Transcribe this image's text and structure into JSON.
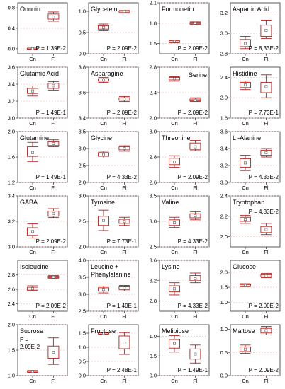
{
  "chart_data": [
    {
      "type": "box",
      "title": "Ononin",
      "p": "P = 1,39E-2",
      "categories": [
        "Cn",
        "Fl"
      ],
      "ylim": [
        -0.1,
        0.9
      ],
      "yticks": [
        0.0,
        0.4,
        0.8
      ],
      "boxes": [
        {
          "min": -0.02,
          "q1": -0.01,
          "median": 0.0,
          "q3": 0.01,
          "max": 0.01,
          "mean": 0.0
        },
        {
          "min": 0.54,
          "q1": 0.58,
          "median": 0.62,
          "q3": 0.68,
          "max": 0.72,
          "mean": 0.62
        }
      ]
    },
    {
      "type": "box",
      "title": "Glycetein",
      "p": "P = 2.09E-2",
      "categories": [
        "Cn",
        "Fl"
      ],
      "ylim": [
        0.0,
        1.2
      ],
      "yticks": [
        0.0,
        0.5,
        1.0
      ],
      "boxes": [
        {
          "min": 0.54,
          "q1": 0.58,
          "median": 0.63,
          "q3": 0.66,
          "max": 0.7,
          "mean": 0.62
        },
        {
          "min": 0.96,
          "q1": 0.98,
          "median": 1.0,
          "q3": 1.01,
          "max": 1.02,
          "mean": 1.0
        }
      ]
    },
    {
      "type": "box",
      "title": "Formonetin",
      "p": "P = 2.09E-2",
      "categories": [
        "Cn",
        "Fl"
      ],
      "ylim": [
        1.35,
        2.1
      ],
      "yticks": [
        1.5,
        1.8,
        2.1
      ],
      "boxes": [
        {
          "min": 1.51,
          "q1": 1.52,
          "median": 1.53,
          "q3": 1.54,
          "max": 1.55,
          "mean": 1.53
        },
        {
          "min": 1.78,
          "q1": 1.79,
          "median": 1.8,
          "q3": 1.81,
          "max": 1.82,
          "mean": 1.8
        }
      ]
    },
    {
      "type": "box",
      "title": "Aspartic Acid",
      "p": "P = 8,33E-2",
      "categories": [
        "Cn",
        "Fl"
      ],
      "ylim": [
        2.8,
        3.3
      ],
      "yticks": [
        2.8,
        3.0,
        3.2
      ],
      "boxes": [
        {
          "min": 2.85,
          "q1": 2.87,
          "median": 2.9,
          "q3": 2.94,
          "max": 2.97,
          "mean": 2.9
        },
        {
          "min": 2.95,
          "q1": 2.97,
          "median": 3.03,
          "q3": 3.08,
          "max": 3.13,
          "mean": 3.03
        }
      ]
    },
    {
      "type": "box",
      "title": "Glutamic Acid",
      "p": "P = 1.49E-1",
      "categories": [
        "Cn",
        "Fl"
      ],
      "ylim": [
        3.0,
        3.6
      ],
      "yticks": [
        3.0,
        3.2,
        3.4,
        3.6
      ],
      "boxes": [
        {
          "min": 3.26,
          "q1": 3.29,
          "median": 3.31,
          "q3": 3.35,
          "max": 3.38,
          "mean": 3.32
        },
        {
          "min": 3.33,
          "q1": 3.35,
          "median": 3.38,
          "q3": 3.41,
          "max": 3.43,
          "mean": 3.38
        }
      ]
    },
    {
      "type": "box",
      "title": "Asparagine",
      "p": "P = 2.09E-2",
      "categories": [
        "Cn",
        "Fl"
      ],
      "ylim": [
        3.4,
        3.8
      ],
      "yticks": [
        3.4,
        3.6,
        3.8
      ],
      "boxes": [
        {
          "min": 3.68,
          "q1": 3.69,
          "median": 3.7,
          "q3": 3.71,
          "max": 3.72,
          "mean": 3.7
        },
        {
          "min": 3.53,
          "q1": 3.54,
          "median": 3.55,
          "q3": 3.56,
          "max": 3.57,
          "mean": 3.55
        }
      ]
    },
    {
      "type": "box",
      "title": "Serine",
      "p": "P = 2.09E-2",
      "categories": [
        "Cn",
        "Fl"
      ],
      "ylim": [
        2.0,
        2.8
      ],
      "yticks": [
        2.0,
        2.4,
        2.8
      ],
      "boxes": [
        {
          "min": 2.58,
          "q1": 2.6,
          "median": 2.62,
          "q3": 2.64,
          "max": 2.65,
          "mean": 2.62
        },
        {
          "min": 2.26,
          "q1": 2.27,
          "median": 2.28,
          "q3": 2.3,
          "max": 2.32,
          "mean": 2.28
        }
      ]
    },
    {
      "type": "box",
      "title": "Histidine",
      "p": "P = 7.73E-1",
      "categories": [
        "Cn",
        "Fl"
      ],
      "ylim": [
        1.6,
        2.6
      ],
      "yticks": [
        1.6,
        2.0,
        2.4
      ],
      "boxes": [
        {
          "min": 2.16,
          "q1": 2.2,
          "median": 2.26,
          "q3": 2.3,
          "max": 2.33,
          "mean": 2.25
        },
        {
          "min": 2.0,
          "q1": 2.1,
          "median": 2.2,
          "q3": 2.3,
          "max": 2.45,
          "mean": 2.22
        }
      ]
    },
    {
      "type": "box",
      "title": "Glutamine",
      "p": "P = 1.49E-1",
      "categories": [
        "Cn",
        "Fl"
      ],
      "ylim": [
        1.2,
        2.0
      ],
      "yticks": [
        1.2,
        1.6,
        2.0
      ],
      "boxes": [
        {
          "min": 1.53,
          "q1": 1.61,
          "median": 1.68,
          "q3": 1.76,
          "max": 1.83,
          "mean": 1.67
        },
        {
          "min": 1.76,
          "q1": 1.78,
          "median": 1.81,
          "q3": 1.84,
          "max": 1.87,
          "mean": 1.81
        }
      ]
    },
    {
      "type": "box",
      "title": "Glycine",
      "p": "P = 4.33E-2",
      "categories": [
        "Cn",
        "Fl"
      ],
      "ylim": [
        2.0,
        3.5
      ],
      "yticks": [
        2.0,
        2.5,
        3.0,
        3.5
      ],
      "boxes": [
        {
          "min": 2.72,
          "q1": 2.77,
          "median": 2.82,
          "q3": 2.88,
          "max": 2.92,
          "mean": 2.82
        },
        {
          "min": 2.92,
          "q1": 2.96,
          "median": 3.0,
          "q3": 3.05,
          "max": 3.08,
          "mean": 3.0
        }
      ]
    },
    {
      "type": "box",
      "title": "Threonine",
      "p": "P = 2.09E-2",
      "categories": [
        "Cn",
        "Fl"
      ],
      "ylim": [
        2.6,
        3.0
      ],
      "yticks": [
        2.6,
        2.8,
        3.0
      ],
      "boxes": [
        {
          "min": 2.72,
          "q1": 2.74,
          "median": 2.76,
          "q3": 2.79,
          "max": 2.81,
          "mean": 2.76
        },
        {
          "min": 2.85,
          "q1": 2.86,
          "median": 2.88,
          "q3": 2.91,
          "max": 2.93,
          "mean": 2.88
        }
      ]
    },
    {
      "type": "box",
      "title": "L -Alanine",
      "p": "P = 4.33E-2",
      "categories": [
        "Cn",
        "Fl"
      ],
      "ylim": [
        3.0,
        3.6
      ],
      "yticks": [
        3.0,
        3.2,
        3.4,
        3.6
      ],
      "boxes": [
        {
          "min": 3.14,
          "q1": 3.18,
          "median": 3.22,
          "q3": 3.28,
          "max": 3.32,
          "mean": 3.23
        },
        {
          "min": 3.3,
          "q1": 3.32,
          "median": 3.35,
          "q3": 3.38,
          "max": 3.4,
          "mean": 3.35
        }
      ]
    },
    {
      "type": "box",
      "title": "GABA",
      "p": "P = 2.09E-2",
      "categories": [
        "Cn",
        "Fl"
      ],
      "ylim": [
        3.0,
        3.4
      ],
      "yticks": [
        3.0,
        3.2,
        3.4
      ],
      "boxes": [
        {
          "min": 3.07,
          "q1": 3.09,
          "median": 3.12,
          "q3": 3.15,
          "max": 3.18,
          "mean": 3.12
        },
        {
          "min": 3.23,
          "q1": 3.24,
          "median": 3.26,
          "q3": 3.28,
          "max": 3.3,
          "mean": 3.26
        }
      ]
    },
    {
      "type": "box",
      "title": "Tyrosine",
      "p": "P = 7.73E-1",
      "categories": [
        "Cn",
        "Fl"
      ],
      "ylim": [
        2.0,
        3.0
      ],
      "yticks": [
        2.0,
        2.5,
        3.0
      ],
      "boxes": [
        {
          "min": 2.32,
          "q1": 2.42,
          "median": 2.52,
          "q3": 2.6,
          "max": 2.72,
          "mean": 2.52
        },
        {
          "min": 2.42,
          "q1": 2.46,
          "median": 2.5,
          "q3": 2.54,
          "max": 2.58,
          "mean": 2.5
        }
      ]
    },
    {
      "type": "box",
      "title": "Valine",
      "p": "P = 4.33E-2",
      "categories": [
        "Cn",
        "Fl"
      ],
      "ylim": [
        2.5,
        3.5
      ],
      "yticks": [
        2.5,
        3.0,
        3.5
      ],
      "boxes": [
        {
          "min": 2.88,
          "q1": 2.92,
          "median": 2.97,
          "q3": 3.03,
          "max": 3.08,
          "mean": 2.97
        },
        {
          "min": 3.03,
          "q1": 3.07,
          "median": 3.11,
          "q3": 3.15,
          "max": 3.19,
          "mean": 3.11
        }
      ]
    },
    {
      "type": "box",
      "title": "Tryptophan",
      "p": "P = 4.33E-2",
      "categories": [
        "Cn",
        "Fl"
      ],
      "ylim": [
        1.9,
        2.4
      ],
      "yticks": [
        2.0,
        2.2,
        2.4
      ],
      "boxes": [
        {
          "min": 2.13,
          "q1": 2.15,
          "median": 2.17,
          "q3": 2.19,
          "max": 2.21,
          "mean": 2.17
        },
        {
          "min": 2.02,
          "q1": 2.04,
          "median": 2.07,
          "q3": 2.1,
          "max": 2.13,
          "mean": 2.07
        }
      ]
    },
    {
      "type": "box",
      "title": "Isoleucine",
      "p": "P = 2.09E-2",
      "categories": [
        "Cn",
        "Fl"
      ],
      "ylim": [
        2.3,
        3.0
      ],
      "yticks": [
        2.4,
        2.6,
        2.8
      ],
      "boxes": [
        {
          "min": 2.58,
          "q1": 2.59,
          "median": 2.61,
          "q3": 2.63,
          "max": 2.65,
          "mean": 2.61
        },
        {
          "min": 2.75,
          "q1": 2.76,
          "median": 2.77,
          "q3": 2.78,
          "max": 2.79,
          "mean": 2.77
        }
      ]
    },
    {
      "type": "box",
      "title": "Leucine + Phenylalanine",
      "p": "P = 1.49E-1",
      "categories": [
        "Cn",
        "Fl"
      ],
      "ylim": [
        2.5,
        4.0
      ],
      "yticks": [
        2.5,
        3.0,
        3.5,
        4.0
      ],
      "boxes": [
        {
          "min": 3.04,
          "q1": 3.09,
          "median": 3.14,
          "q3": 3.19,
          "max": 3.24,
          "mean": 3.14
        },
        {
          "min": 3.1,
          "q1": 3.14,
          "median": 3.18,
          "q3": 3.22,
          "max": 3.26,
          "mean": 3.18
        }
      ]
    },
    {
      "type": "box",
      "title": "Lysine",
      "p": "P = 4.33E-2",
      "categories": [
        "Cn",
        "Fl"
      ],
      "ylim": [
        2.6,
        3.6
      ],
      "yticks": [
        2.8,
        3.2,
        3.6
      ],
      "boxes": [
        {
          "min": 2.92,
          "q1": 2.98,
          "median": 3.04,
          "q3": 3.1,
          "max": 3.16,
          "mean": 3.04
        },
        {
          "min": 3.16,
          "q1": 3.2,
          "median": 3.24,
          "q3": 3.3,
          "max": 3.35,
          "mean": 3.24
        }
      ]
    },
    {
      "type": "box",
      "title": "Glucose",
      "p": "P = 2.09E-2",
      "categories": [
        "Cn",
        "Fl"
      ],
      "ylim": [
        0.7,
        2.4
      ],
      "yticks": [
        1.0,
        1.5,
        2.0
      ],
      "boxes": [
        {
          "min": 1.52,
          "q1": 1.54,
          "median": 1.56,
          "q3": 1.59,
          "max": 1.62,
          "mean": 1.56
        },
        {
          "min": 1.82,
          "q1": 1.85,
          "median": 1.88,
          "q3": 1.92,
          "max": 1.96,
          "mean": 1.88
        }
      ]
    },
    {
      "type": "box",
      "title": "Sucrose",
      "p": "P = 2.09E-2",
      "categories": [
        "Cn",
        "Fl"
      ],
      "ylim": [
        1.0,
        2.0
      ],
      "yticks": [
        1.0,
        1.5,
        2.0
      ],
      "boxes": [
        {
          "min": 1.06,
          "q1": 1.07,
          "median": 1.08,
          "q3": 1.09,
          "max": 1.1,
          "mean": 1.08
        },
        {
          "min": 1.22,
          "q1": 1.34,
          "median": 1.46,
          "q3": 1.58,
          "max": 1.74,
          "mean": 1.46
        }
      ]
    },
    {
      "type": "box",
      "title": "Fructose",
      "p": "P = 2.48E-1",
      "categories": [
        "Cn",
        "Fl"
      ],
      "ylim": [
        0.0,
        1.8
      ],
      "yticks": [
        0.0,
        0.5,
        1.0,
        1.5
      ],
      "boxes": [
        {
          "min": 1.45,
          "q1": 1.47,
          "median": 1.49,
          "q3": 1.51,
          "max": 1.53,
          "mean": 1.49
        },
        {
          "min": 0.75,
          "q1": 0.95,
          "median": 1.15,
          "q3": 1.4,
          "max": 1.52,
          "mean": 1.15
        }
      ]
    },
    {
      "type": "box",
      "title": "Melibiose",
      "p": "P = 1.49E-1",
      "categories": [
        "Cn",
        "Fl"
      ],
      "ylim": [
        0.0,
        1.3
      ],
      "yticks": [
        0.0,
        0.5,
        1.0
      ],
      "boxes": [
        {
          "min": 0.6,
          "q1": 0.7,
          "median": 0.82,
          "q3": 0.92,
          "max": 1.02,
          "mean": 0.82
        },
        {
          "min": 0.32,
          "q1": 0.42,
          "median": 0.55,
          "q3": 0.68,
          "max": 0.78,
          "mean": 0.55
        }
      ]
    },
    {
      "type": "box",
      "title": "Maltose",
      "p": "P = 2.09E-2",
      "categories": [
        "Cn",
        "Fl"
      ],
      "ylim": [
        0.0,
        1.1
      ],
      "yticks": [
        0.0,
        0.5,
        1.0
      ],
      "boxes": [
        {
          "min": 0.48,
          "q1": 0.52,
          "median": 0.57,
          "q3": 0.62,
          "max": 0.66,
          "mean": 0.57
        },
        {
          "min": 0.88,
          "q1": 0.92,
          "median": 0.97,
          "q3": 1.02,
          "max": 1.06,
          "mean": 0.97
        }
      ]
    }
  ],
  "colors": {
    "box": "#b22222",
    "grid": "#f2c6c6",
    "axis": "#333333"
  }
}
